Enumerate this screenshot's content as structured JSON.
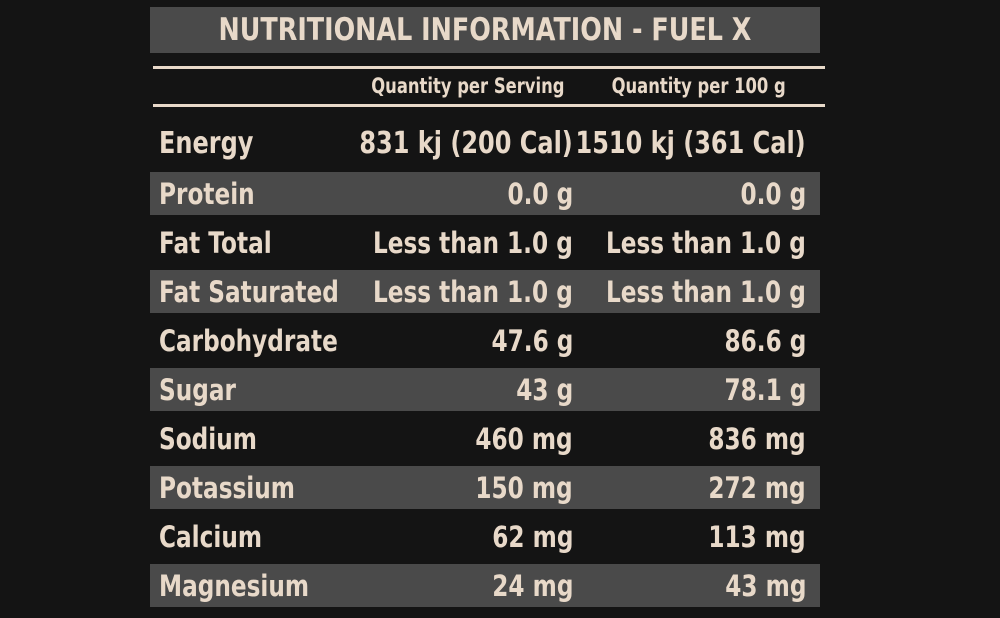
{
  "title": "NUTRITIONAL INFORMATION - FUEL X",
  "columns": {
    "serving": "Quantity per Serving",
    "per100": "Quantity per 100 g"
  },
  "rows": [
    {
      "nutrient": "Energy",
      "serving": "831 kj (200 Cal)",
      "per100": "1510 kj (361 Cal)"
    },
    {
      "nutrient": "Protein",
      "serving": "0.0 g",
      "per100": "0.0 g"
    },
    {
      "nutrient": "Fat Total",
      "serving": "Less than 1.0 g",
      "per100": "Less than 1.0 g"
    },
    {
      "nutrient": "Fat Saturated",
      "serving": "Less than 1.0 g",
      "per100": "Less than 1.0 g"
    },
    {
      "nutrient": "Carbohydrate",
      "serving": "47.6 g",
      "per100": "86.6 g"
    },
    {
      "nutrient": "Sugar",
      "serving": "43 g",
      "per100": "78.1 g"
    },
    {
      "nutrient": "Sodium",
      "serving": "460 mg",
      "per100": "836 mg"
    },
    {
      "nutrient": "Potassium",
      "serving": "150 mg",
      "per100": "272 mg"
    },
    {
      "nutrient": "Calcium",
      "serving": "62 mg",
      "per100": "113 mg"
    },
    {
      "nutrient": "Magnesium",
      "serving": "24 mg",
      "per100": "43 mg"
    }
  ],
  "colors": {
    "background": "#141414",
    "shaded_row": "#4a4a4a",
    "text": "#e8d9c9"
  }
}
